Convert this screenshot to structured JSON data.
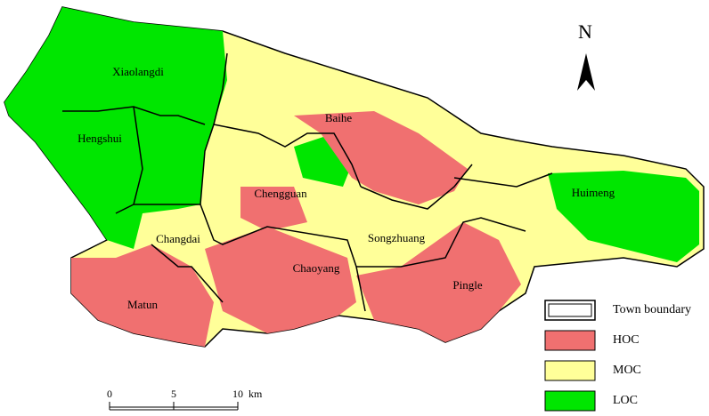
{
  "north_arrow": {
    "label": "N"
  },
  "towns": [
    "Xiaolangdi",
    "Hengshui",
    "Baihe",
    "Chengguan",
    "Changdai",
    "Chaoyang",
    "Songzhuang",
    "Huimeng",
    "Pingle",
    "Matun"
  ],
  "legend": {
    "items": [
      "Town boundary",
      "HOC",
      "MOC",
      "LOC"
    ]
  },
  "scale_bar": {
    "ticks": [
      0,
      5,
      10
    ],
    "unit": "km"
  }
}
